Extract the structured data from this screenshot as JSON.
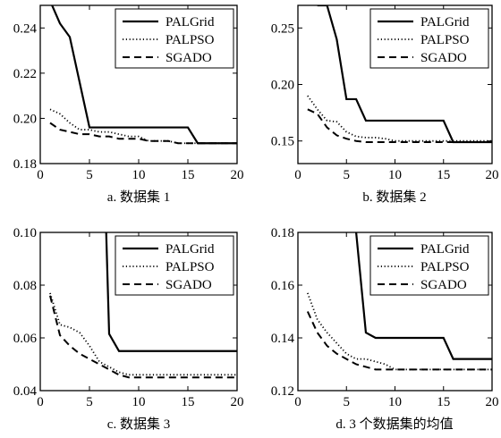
{
  "colors": {
    "axis": "#000000",
    "series": "#000000",
    "background": "#ffffff"
  },
  "chart_data": [
    {
      "type": "line",
      "caption": "a. 数据集 1",
      "xlim": [
        0,
        20
      ],
      "ylim": [
        0.18,
        0.25
      ],
      "xticks": [
        0,
        5,
        10,
        15,
        20
      ],
      "yticks": [
        0.18,
        0.2,
        0.22,
        0.24
      ],
      "ytick_labels": [
        "0.18",
        "0.20",
        "0.22",
        "0.24"
      ],
      "legend_position": "top-right",
      "series": [
        {
          "name": "PALGrid",
          "style": "solid",
          "x": [
            1,
            2,
            3,
            4,
            5,
            6,
            7,
            8,
            9,
            10,
            11,
            12,
            13,
            14,
            15,
            16,
            17,
            18,
            19,
            20
          ],
          "y": [
            0.252,
            0.242,
            0.236,
            0.216,
            0.196,
            0.196,
            0.196,
            0.196,
            0.196,
            0.196,
            0.196,
            0.196,
            0.196,
            0.196,
            0.196,
            0.189,
            0.189,
            0.189,
            0.189,
            0.189
          ]
        },
        {
          "name": "PALPSO",
          "style": "dotted",
          "x": [
            1,
            2,
            3,
            4,
            5,
            6,
            7,
            8,
            9,
            10,
            11,
            12,
            13,
            14,
            15,
            16,
            17,
            18,
            19,
            20
          ],
          "y": [
            0.204,
            0.202,
            0.198,
            0.195,
            0.195,
            0.194,
            0.194,
            0.193,
            0.192,
            0.192,
            0.19,
            0.19,
            0.19,
            0.189,
            0.189,
            0.189,
            0.189,
            0.189,
            0.189,
            0.189
          ]
        },
        {
          "name": "SGADO",
          "style": "dashed",
          "x": [
            1,
            2,
            3,
            4,
            5,
            6,
            7,
            8,
            9,
            10,
            11,
            12,
            13,
            14,
            15,
            16,
            17,
            18,
            19,
            20
          ],
          "y": [
            0.198,
            0.195,
            0.194,
            0.193,
            0.193,
            0.192,
            0.192,
            0.191,
            0.191,
            0.191,
            0.19,
            0.19,
            0.19,
            0.189,
            0.189,
            0.189,
            0.189,
            0.189,
            0.189,
            0.189
          ]
        }
      ]
    },
    {
      "type": "line",
      "caption": "b. 数据集 2",
      "xlim": [
        0,
        20
      ],
      "ylim": [
        0.13,
        0.27
      ],
      "xticks": [
        0,
        5,
        10,
        15,
        20
      ],
      "yticks": [
        0.15,
        0.2,
        0.25
      ],
      "ytick_labels": [
        "0.15",
        "0.20",
        "0.25"
      ],
      "legend_position": "top-right",
      "series": [
        {
          "name": "PALGrid",
          "style": "solid",
          "x": [
            2,
            3,
            4,
            5,
            6,
            7,
            8,
            9,
            10,
            11,
            12,
            13,
            14,
            15,
            16,
            17,
            18,
            19,
            20
          ],
          "y": [
            0.27,
            0.27,
            0.24,
            0.187,
            0.187,
            0.168,
            0.168,
            0.168,
            0.168,
            0.168,
            0.168,
            0.168,
            0.168,
            0.168,
            0.149,
            0.149,
            0.149,
            0.149,
            0.149
          ]
        },
        {
          "name": "PALPSO",
          "style": "dotted",
          "x": [
            1,
            2,
            3,
            4,
            5,
            6,
            7,
            8,
            9,
            10,
            11,
            12,
            13,
            14,
            15,
            16,
            17,
            18,
            19,
            20
          ],
          "y": [
            0.19,
            0.178,
            0.168,
            0.167,
            0.158,
            0.154,
            0.153,
            0.153,
            0.152,
            0.15,
            0.15,
            0.15,
            0.15,
            0.15,
            0.15,
            0.15,
            0.15,
            0.15,
            0.15,
            0.15
          ]
        },
        {
          "name": "SGADO",
          "style": "dashed",
          "x": [
            1,
            2,
            3,
            4,
            5,
            6,
            7,
            8,
            9,
            10,
            11,
            12,
            13,
            14,
            15,
            16,
            17,
            18,
            19,
            20
          ],
          "y": [
            0.178,
            0.174,
            0.162,
            0.155,
            0.152,
            0.15,
            0.149,
            0.149,
            0.149,
            0.149,
            0.149,
            0.149,
            0.149,
            0.149,
            0.149,
            0.149,
            0.149,
            0.149,
            0.149,
            0.149
          ]
        }
      ]
    },
    {
      "type": "line",
      "caption": "c. 数据集 3",
      "xlim": [
        0,
        20
      ],
      "ylim": [
        0.04,
        0.1
      ],
      "xticks": [
        0,
        5,
        10,
        15,
        20
      ],
      "yticks": [
        0.04,
        0.06,
        0.08,
        0.1
      ],
      "ytick_labels": [
        "0.04",
        "0.06",
        "0.08",
        "0.10"
      ],
      "legend_position": "top-right",
      "series": [
        {
          "name": "PALGrid",
          "style": "solid",
          "x": [
            6.7,
            7,
            8,
            9,
            10,
            11,
            12,
            13,
            14,
            15,
            16,
            17,
            18,
            19,
            20
          ],
          "y": [
            0.1,
            0.0615,
            0.055,
            0.055,
            0.055,
            0.055,
            0.055,
            0.055,
            0.055,
            0.055,
            0.055,
            0.055,
            0.055,
            0.055,
            0.055
          ]
        },
        {
          "name": "PALPSO",
          "style": "dotted",
          "x": [
            1,
            2,
            3,
            4,
            5,
            6,
            7,
            8,
            9,
            10,
            11,
            12,
            13,
            14,
            15,
            16,
            17,
            18,
            19,
            20
          ],
          "y": [
            0.077,
            0.065,
            0.064,
            0.062,
            0.057,
            0.051,
            0.049,
            0.047,
            0.046,
            0.046,
            0.046,
            0.046,
            0.046,
            0.046,
            0.046,
            0.046,
            0.046,
            0.046,
            0.046,
            0.046
          ]
        },
        {
          "name": "SGADO",
          "style": "dashed",
          "x": [
            1,
            2,
            3,
            4,
            5,
            6,
            7,
            8,
            9,
            10,
            11,
            12,
            13,
            14,
            15,
            16,
            17,
            18,
            19,
            20
          ],
          "y": [
            0.076,
            0.061,
            0.057,
            0.054,
            0.052,
            0.05,
            0.048,
            0.046,
            0.045,
            0.045,
            0.045,
            0.045,
            0.045,
            0.045,
            0.045,
            0.045,
            0.045,
            0.045,
            0.045,
            0.045
          ]
        }
      ]
    },
    {
      "type": "line",
      "caption": "d. 3 个数据集的均值",
      "xlim": [
        0,
        20
      ],
      "ylim": [
        0.12,
        0.18
      ],
      "xticks": [
        0,
        5,
        10,
        15,
        20
      ],
      "yticks": [
        0.12,
        0.14,
        0.16,
        0.18
      ],
      "ytick_labels": [
        "0.12",
        "0.14",
        "0.16",
        "0.18"
      ],
      "legend_position": "top-right",
      "series": [
        {
          "name": "PALGrid",
          "style": "solid",
          "x": [
            6,
            7,
            8,
            9,
            10,
            11,
            12,
            13,
            14,
            15,
            16,
            17,
            18,
            19,
            20
          ],
          "y": [
            0.18,
            0.142,
            0.14,
            0.14,
            0.14,
            0.14,
            0.14,
            0.14,
            0.14,
            0.14,
            0.132,
            0.132,
            0.132,
            0.132,
            0.132
          ]
        },
        {
          "name": "PALPSO",
          "style": "dotted",
          "x": [
            1,
            2,
            3,
            4,
            5,
            6,
            7,
            8,
            9,
            10,
            11,
            12,
            13,
            14,
            15,
            16,
            17,
            18,
            19,
            20
          ],
          "y": [
            0.157,
            0.147,
            0.142,
            0.138,
            0.134,
            0.132,
            0.132,
            0.131,
            0.13,
            0.128,
            0.128,
            0.128,
            0.128,
            0.128,
            0.128,
            0.128,
            0.128,
            0.128,
            0.128,
            0.128
          ]
        },
        {
          "name": "SGADO",
          "style": "dashed",
          "x": [
            1,
            2,
            3,
            4,
            5,
            6,
            7,
            8,
            9,
            10,
            11,
            12,
            13,
            14,
            15,
            16,
            17,
            18,
            19,
            20
          ],
          "y": [
            0.15,
            0.142,
            0.137,
            0.134,
            0.132,
            0.13,
            0.129,
            0.128,
            0.128,
            0.128,
            0.128,
            0.128,
            0.128,
            0.128,
            0.128,
            0.128,
            0.128,
            0.128,
            0.128,
            0.128
          ]
        }
      ]
    }
  ]
}
